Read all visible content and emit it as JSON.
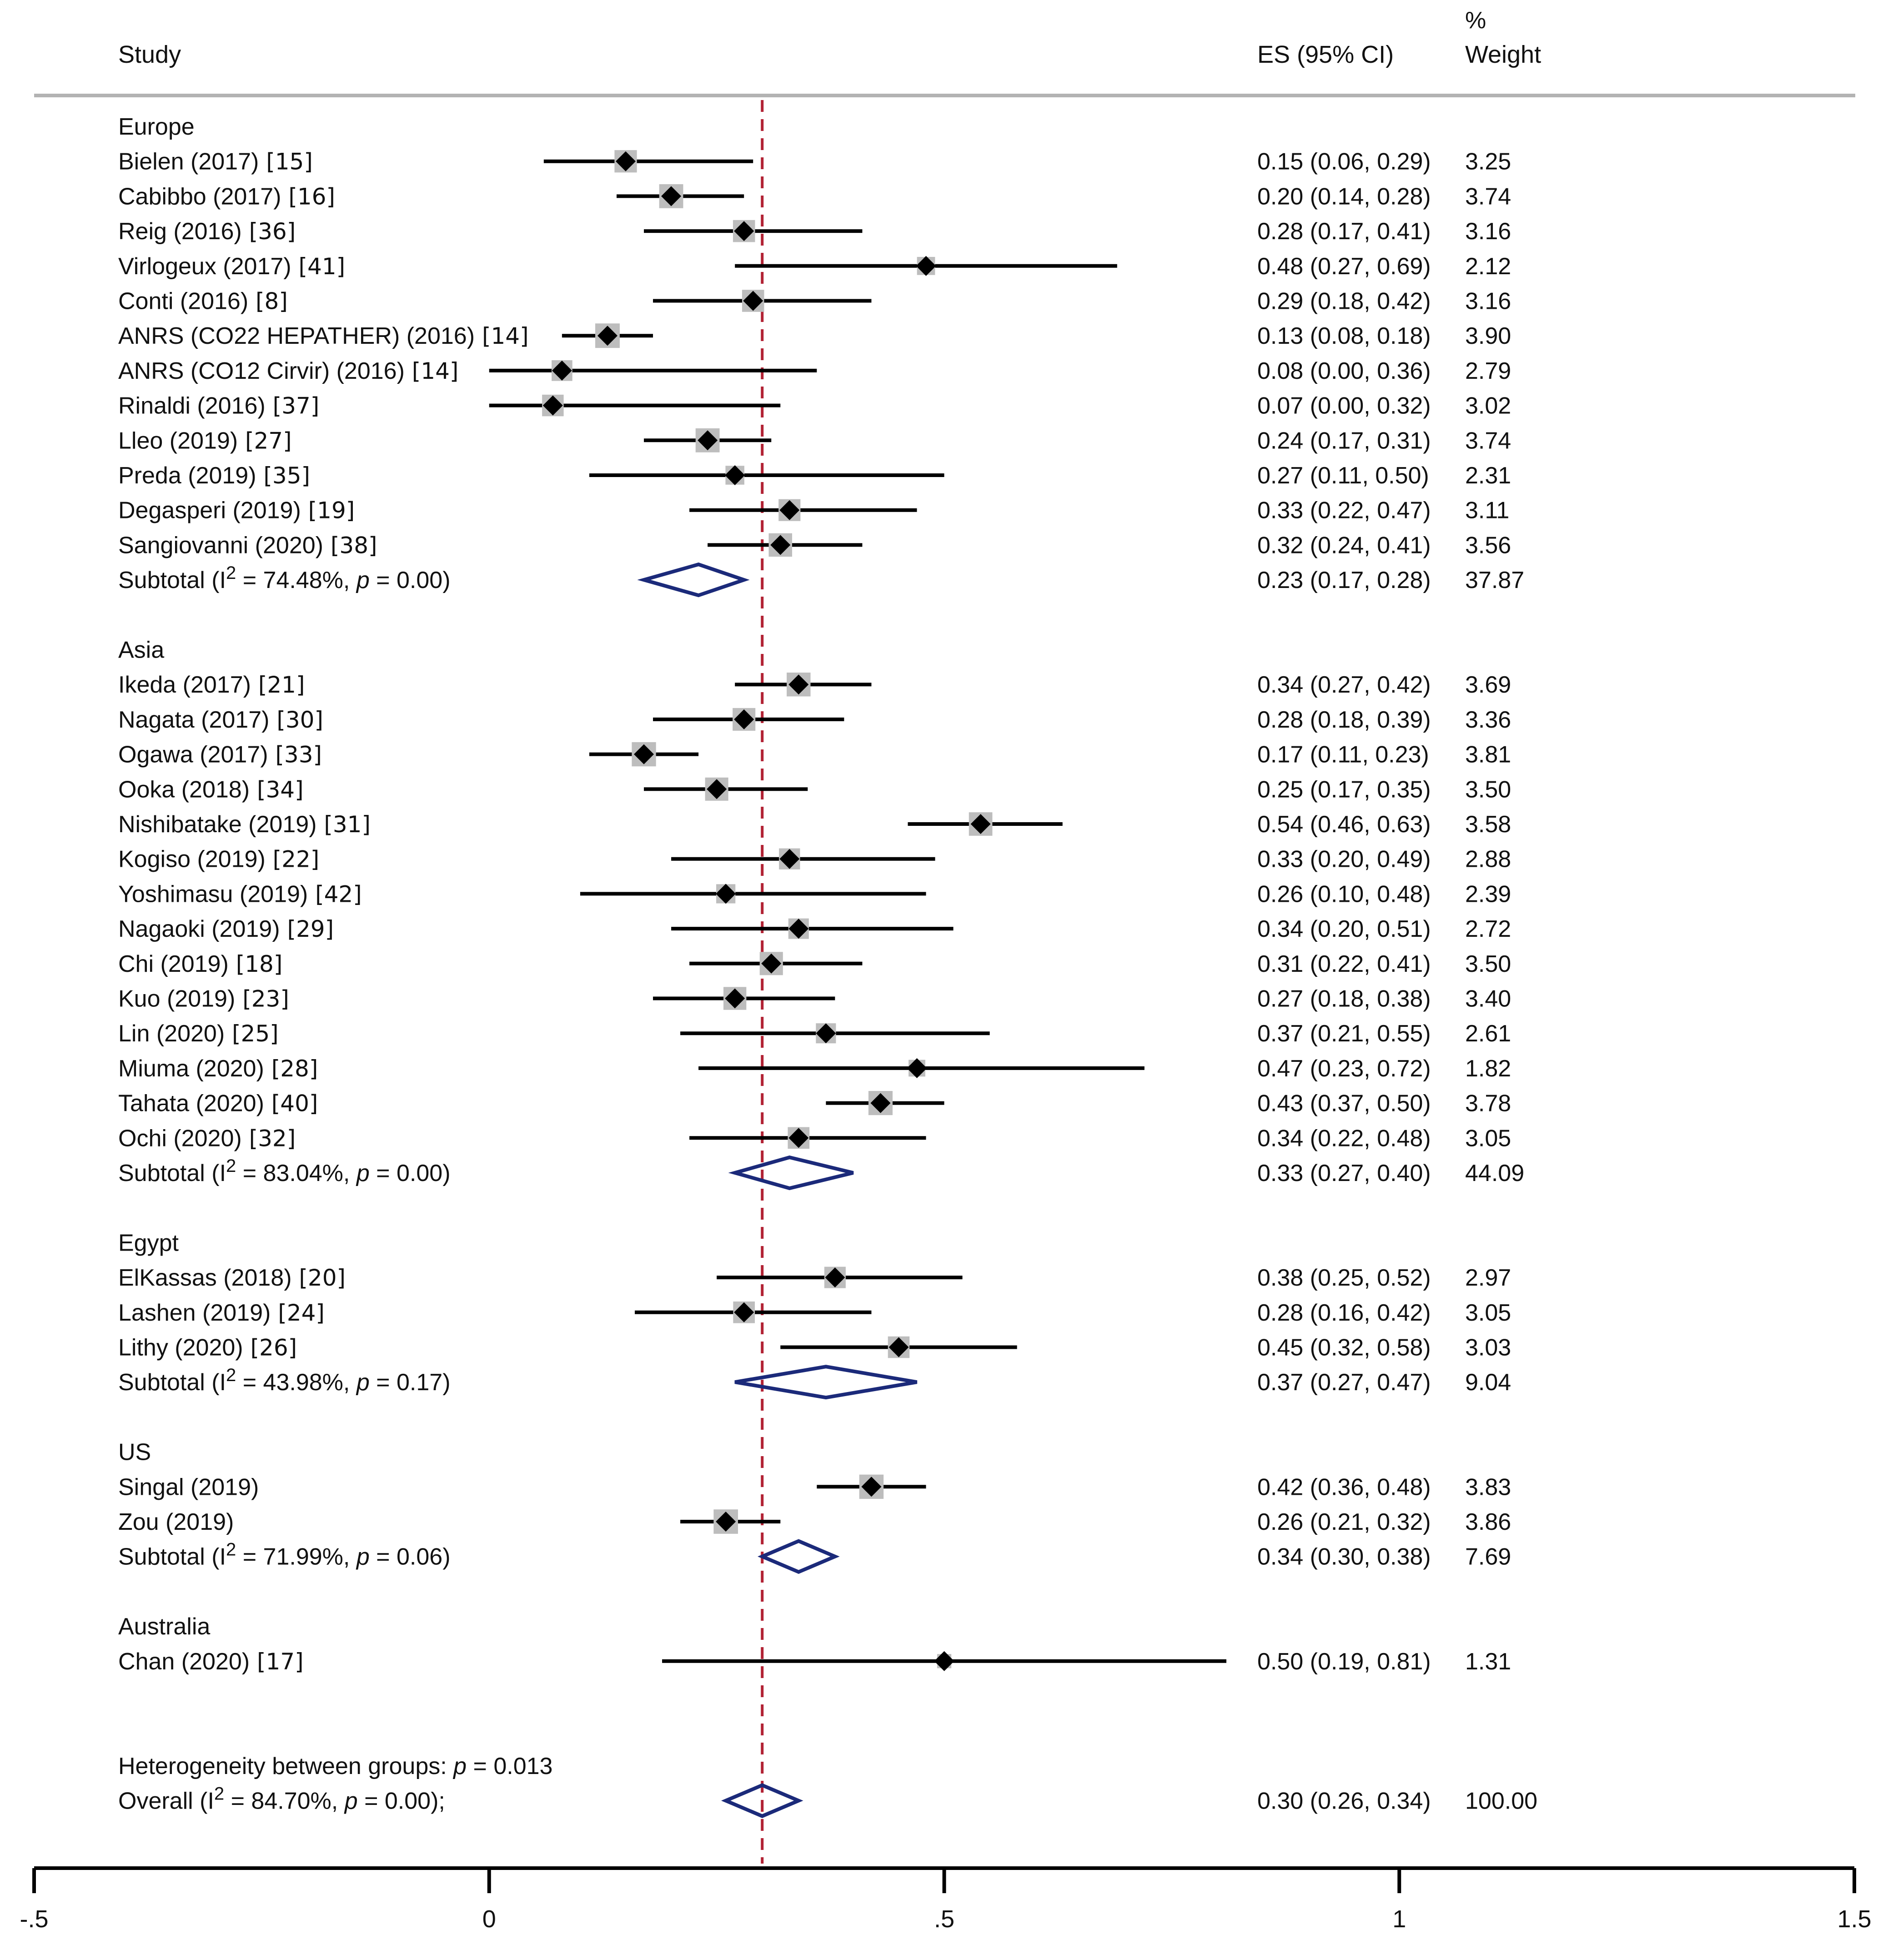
{
  "chart_data": {
    "type": "forest",
    "header": {
      "study": "Study",
      "es": "ES (95% CI)",
      "weight_pct": "%",
      "weight": "Weight"
    },
    "xaxis": {
      "min": -0.5,
      "max": 1.5,
      "ticks": [
        -0.5,
        0,
        0.5,
        1,
        1.5
      ],
      "tick_labels": [
        "-.5",
        "0",
        ".5",
        "1",
        "1.5"
      ]
    },
    "reference_line": 0.3,
    "rows": [
      {
        "kind": "group",
        "label": "Europe"
      },
      {
        "kind": "study",
        "study": "Bielen (2017)",
        "ref": "[15]",
        "es": 0.15,
        "lo": 0.06,
        "hi": 0.29,
        "es_text": "0.15 (0.06, 0.29)",
        "weight": 3.25,
        "weight_text": "3.25"
      },
      {
        "kind": "study",
        "study": "Cabibbo (2017)",
        "ref": "[16]",
        "es": 0.2,
        "lo": 0.14,
        "hi": 0.28,
        "es_text": "0.20 (0.14, 0.28)",
        "weight": 3.74,
        "weight_text": "3.74"
      },
      {
        "kind": "study",
        "study": "Reig (2016)",
        "ref": "[36]",
        "es": 0.28,
        "lo": 0.17,
        "hi": 0.41,
        "es_text": "0.28 (0.17, 0.41)",
        "weight": 3.16,
        "weight_text": "3.16"
      },
      {
        "kind": "study",
        "study": "Virlogeux (2017)",
        "ref": "[41]",
        "es": 0.48,
        "lo": 0.27,
        "hi": 0.69,
        "es_text": "0.48 (0.27, 0.69)",
        "weight": 2.12,
        "weight_text": "2.12"
      },
      {
        "kind": "study",
        "study": "Conti (2016)",
        "ref": "[8]",
        "es": 0.29,
        "lo": 0.18,
        "hi": 0.42,
        "es_text": "0.29 (0.18, 0.42)",
        "weight": 3.16,
        "weight_text": "3.16"
      },
      {
        "kind": "study",
        "study": "ANRS (CO22 HEPATHER) (2016)",
        "ref": "[14]",
        "es": 0.13,
        "lo": 0.08,
        "hi": 0.18,
        "es_text": "0.13 (0.08, 0.18)",
        "weight": 3.9,
        "weight_text": "3.90"
      },
      {
        "kind": "study",
        "study": "ANRS (CO12 Cirvir) (2016)",
        "ref": "[14]",
        "es": 0.08,
        "lo": 0.0,
        "hi": 0.36,
        "es_text": "0.08 (0.00, 0.36)",
        "weight": 2.79,
        "weight_text": "2.79"
      },
      {
        "kind": "study",
        "study": "Rinaldi (2016)",
        "ref": "[37]",
        "es": 0.07,
        "lo": 0.0,
        "hi": 0.32,
        "es_text": "0.07 (0.00, 0.32)",
        "weight": 3.02,
        "weight_text": "3.02"
      },
      {
        "kind": "study",
        "study": "Lleo (2019)",
        "ref": "[27]",
        "es": 0.24,
        "lo": 0.17,
        "hi": 0.31,
        "es_text": "0.24 (0.17, 0.31)",
        "weight": 3.74,
        "weight_text": "3.74"
      },
      {
        "kind": "study",
        "study": "Preda (2019)",
        "ref": "[35]",
        "es": 0.27,
        "lo": 0.11,
        "hi": 0.5,
        "es_text": "0.27 (0.11, 0.50)",
        "weight": 2.31,
        "weight_text": "2.31"
      },
      {
        "kind": "study",
        "study": "Degasperi (2019)",
        "ref": "[19]",
        "es": 0.33,
        "lo": 0.22,
        "hi": 0.47,
        "es_text": "0.33 (0.22, 0.47)",
        "weight": 3.11,
        "weight_text": "3.11"
      },
      {
        "kind": "study",
        "study": "Sangiovanni (2020)",
        "ref": "[38]",
        "es": 0.32,
        "lo": 0.24,
        "hi": 0.41,
        "es_text": "0.32 (0.24, 0.41)",
        "weight": 3.56,
        "weight_text": "3.56"
      },
      {
        "kind": "subtotal",
        "label": "Subtotal",
        "i2": "74.48%",
        "p": "0.00",
        "es": 0.23,
        "lo": 0.17,
        "hi": 0.28,
        "es_text": "0.23 (0.17, 0.28)",
        "weight_text": "37.87"
      },
      {
        "kind": "blank"
      },
      {
        "kind": "group",
        "label": "Asia"
      },
      {
        "kind": "study",
        "study": "Ikeda (2017)",
        "ref": "[21]",
        "es": 0.34,
        "lo": 0.27,
        "hi": 0.42,
        "es_text": "0.34 (0.27, 0.42)",
        "weight": 3.69,
        "weight_text": "3.69"
      },
      {
        "kind": "study",
        "study": "Nagata (2017)",
        "ref": "[30]",
        "es": 0.28,
        "lo": 0.18,
        "hi": 0.39,
        "es_text": "0.28 (0.18, 0.39)",
        "weight": 3.36,
        "weight_text": "3.36"
      },
      {
        "kind": "study",
        "study": "Ogawa (2017)",
        "ref": "[33]",
        "es": 0.17,
        "lo": 0.11,
        "hi": 0.23,
        "es_text": "0.17 (0.11, 0.23)",
        "weight": 3.81,
        "weight_text": "3.81"
      },
      {
        "kind": "study",
        "study": "Ooka (2018)",
        "ref": "[34]",
        "es": 0.25,
        "lo": 0.17,
        "hi": 0.35,
        "es_text": "0.25 (0.17, 0.35)",
        "weight": 3.5,
        "weight_text": "3.50"
      },
      {
        "kind": "study",
        "study": "Nishibatake (2019)",
        "ref": "[31]",
        "es": 0.54,
        "lo": 0.46,
        "hi": 0.63,
        "es_text": "0.54 (0.46, 0.63)",
        "weight": 3.58,
        "weight_text": "3.58"
      },
      {
        "kind": "study",
        "study": "Kogiso (2019)",
        "ref": "[22]",
        "es": 0.33,
        "lo": 0.2,
        "hi": 0.49,
        "es_text": "0.33 (0.20, 0.49)",
        "weight": 2.88,
        "weight_text": "2.88"
      },
      {
        "kind": "study",
        "study": "Yoshimasu (2019)",
        "ref": "[42]",
        "es": 0.26,
        "lo": 0.1,
        "hi": 0.48,
        "es_text": "0.26 (0.10, 0.48)",
        "weight": 2.39,
        "weight_text": "2.39"
      },
      {
        "kind": "study",
        "study": "Nagaoki (2019)",
        "ref": "[29]",
        "es": 0.34,
        "lo": 0.2,
        "hi": 0.51,
        "es_text": "0.34 (0.20, 0.51)",
        "weight": 2.72,
        "weight_text": "2.72"
      },
      {
        "kind": "study",
        "study": "Chi (2019)",
        "ref": "[18]",
        "es": 0.31,
        "lo": 0.22,
        "hi": 0.41,
        "es_text": "0.31 (0.22, 0.41)",
        "weight": 3.5,
        "weight_text": "3.50"
      },
      {
        "kind": "study",
        "study": "Kuo (2019)",
        "ref": "[23]",
        "es": 0.27,
        "lo": 0.18,
        "hi": 0.38,
        "es_text": "0.27 (0.18, 0.38)",
        "weight": 3.4,
        "weight_text": "3.40"
      },
      {
        "kind": "study",
        "study": "Lin (2020)",
        "ref": "[25]",
        "es": 0.37,
        "lo": 0.21,
        "hi": 0.55,
        "es_text": "0.37 (0.21, 0.55)",
        "weight": 2.61,
        "weight_text": "2.61"
      },
      {
        "kind": "study",
        "study": "Miuma (2020)",
        "ref": "[28]",
        "es": 0.47,
        "lo": 0.23,
        "hi": 0.72,
        "es_text": "0.47 (0.23, 0.72)",
        "weight": 1.82,
        "weight_text": "1.82"
      },
      {
        "kind": "study",
        "study": "Tahata (2020)",
        "ref": "[40]",
        "es": 0.43,
        "lo": 0.37,
        "hi": 0.5,
        "es_text": "0.43 (0.37, 0.50)",
        "weight": 3.78,
        "weight_text": "3.78"
      },
      {
        "kind": "study",
        "study": "Ochi (2020)",
        "ref": "[32]",
        "es": 0.34,
        "lo": 0.22,
        "hi": 0.48,
        "es_text": "0.34 (0.22, 0.48)",
        "weight": 3.05,
        "weight_text": "3.05"
      },
      {
        "kind": "subtotal",
        "label": "Subtotal",
        "i2": "83.04%",
        "p": "0.00",
        "es": 0.33,
        "lo": 0.27,
        "hi": 0.4,
        "es_text": "0.33 (0.27, 0.40)",
        "weight_text": "44.09"
      },
      {
        "kind": "blank"
      },
      {
        "kind": "group",
        "label": "Egypt"
      },
      {
        "kind": "study",
        "study": "ElKassas (2018)",
        "ref": "[20]",
        "es": 0.38,
        "lo": 0.25,
        "hi": 0.52,
        "es_text": "0.38 (0.25, 0.52)",
        "weight": 2.97,
        "weight_text": "2.97"
      },
      {
        "kind": "study",
        "study": "Lashen (2019)",
        "ref": "[24]",
        "es": 0.28,
        "lo": 0.16,
        "hi": 0.42,
        "es_text": "0.28 (0.16, 0.42)",
        "weight": 3.05,
        "weight_text": "3.05"
      },
      {
        "kind": "study",
        "study": "Lithy (2020)",
        "ref": "[26]",
        "es": 0.45,
        "lo": 0.32,
        "hi": 0.58,
        "es_text": "0.45 (0.32, 0.58)",
        "weight": 3.03,
        "weight_text": "3.03"
      },
      {
        "kind": "subtotal",
        "label": "Subtotal",
        "i2": "43.98%",
        "p": "0.17",
        "es": 0.37,
        "lo": 0.27,
        "hi": 0.47,
        "es_text": "0.37 (0.27, 0.47)",
        "weight_text": "9.04"
      },
      {
        "kind": "blank"
      },
      {
        "kind": "group",
        "label": "US"
      },
      {
        "kind": "study",
        "study": "Singal (2019)",
        "ref": "",
        "es": 0.42,
        "lo": 0.36,
        "hi": 0.48,
        "es_text": "0.42 (0.36, 0.48)",
        "weight": 3.83,
        "weight_text": "3.83"
      },
      {
        "kind": "study",
        "study": "Zou (2019)",
        "ref": "",
        "es": 0.26,
        "lo": 0.21,
        "hi": 0.32,
        "es_text": "0.26 (0.21, 0.32)",
        "weight": 3.86,
        "weight_text": "3.86"
      },
      {
        "kind": "subtotal",
        "label": "Subtotal",
        "i2": "71.99%",
        "p": "0.06",
        "es": 0.34,
        "lo": 0.3,
        "hi": 0.38,
        "es_text": "0.34 (0.30, 0.38)",
        "weight_text": "7.69"
      },
      {
        "kind": "blank"
      },
      {
        "kind": "group",
        "label": "Australia"
      },
      {
        "kind": "study",
        "study": "Chan (2020)",
        "ref": "[17]",
        "es": 0.5,
        "lo": 0.19,
        "hi": 0.81,
        "es_text": "0.50 (0.19, 0.81)",
        "weight": 1.31,
        "weight_text": "1.31"
      },
      {
        "kind": "blank"
      },
      {
        "kind": "blank"
      },
      {
        "kind": "note",
        "text": "Heterogeneity between groups: ",
        "p_label": "p",
        "p_value": " = 0.013"
      },
      {
        "kind": "overall",
        "label": "Overall",
        "i2": "84.70%",
        "p": "0.00",
        "es": 0.3,
        "lo": 0.26,
        "hi": 0.34,
        "es_text": "0.30 (0.26, 0.34)",
        "weight_text": "100.00"
      }
    ]
  }
}
